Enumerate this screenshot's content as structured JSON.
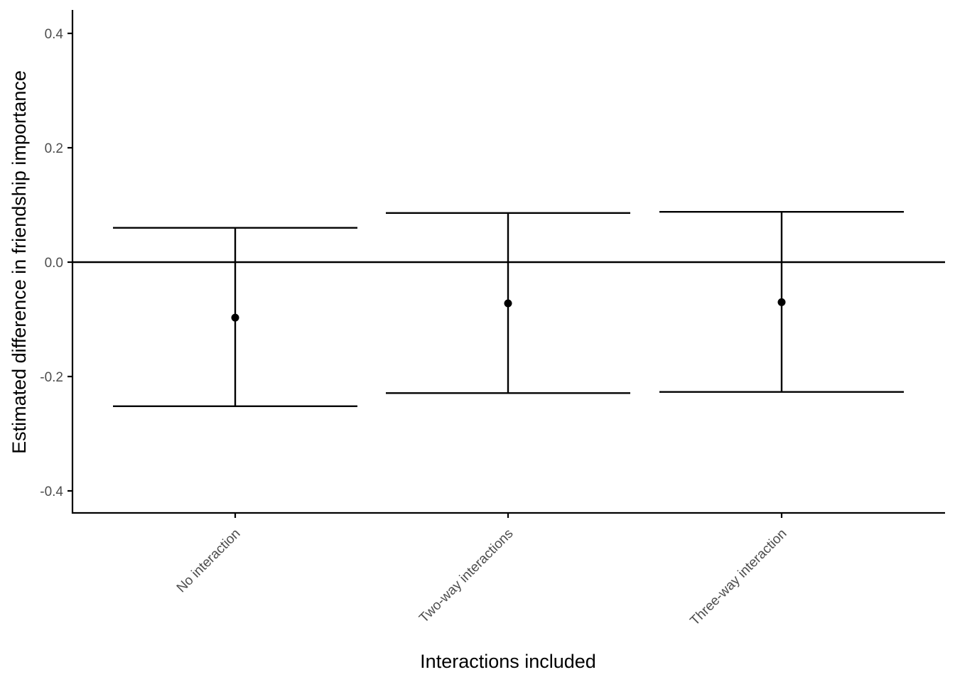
{
  "chart_data": {
    "type": "scatter",
    "title": "",
    "xlabel": "Interactions included",
    "ylabel": "Estimated difference in friendship importance",
    "categories": [
      "No interaction",
      "Two-way interactions",
      "Three-way interaction"
    ],
    "estimates": [
      -0.097,
      -0.072,
      -0.07
    ],
    "lower": [
      -0.252,
      -0.229,
      -0.227
    ],
    "upper": [
      0.06,
      0.086,
      0.088
    ],
    "ylim": [
      -0.44,
      0.44
    ],
    "yticks": [
      -0.4,
      -0.2,
      0.0,
      0.2,
      0.4
    ],
    "ytick_labels": [
      "-0.4",
      "-0.2",
      "0.0",
      "0.2",
      "0.4"
    ],
    "reference_line": 0.0,
    "grid": false,
    "color": "#000000"
  }
}
